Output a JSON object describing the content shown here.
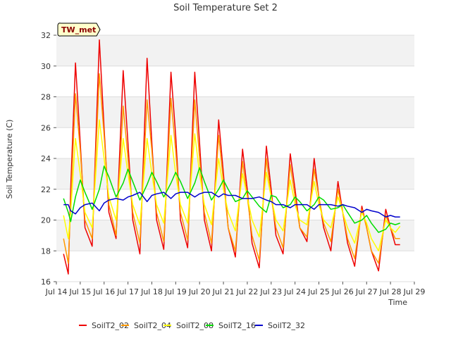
{
  "chart_data": {
    "type": "line",
    "title": "Soil Temperature Set 2",
    "xlabel": "Time",
    "ylabel": "Soil Temperature (C)",
    "badge": "TW_met",
    "x_ticks": [
      "Jul 14",
      "Jul 15",
      "Jul 16",
      "Jul 17",
      "Jul 18",
      "Jul 19",
      "Jul 20",
      "Jul 21",
      "Jul 22",
      "Jul 23",
      "Jul 24",
      "Jul 25",
      "Jul 26",
      "Jul 27",
      "Jul 28",
      "Jul 29"
    ],
    "y_ticks": [
      "16",
      "18",
      "20",
      "22",
      "24",
      "26",
      "28",
      "30",
      "32"
    ],
    "xlim": [
      14,
      29
    ],
    "ylim": [
      16,
      32
    ],
    "grid": "alternating horizontal bands",
    "legend_position": "bottom",
    "x": [
      14.3,
      14.5,
      14.6,
      14.8,
      15.0,
      15.2,
      15.5,
      15.8,
      16.0,
      16.2,
      16.5,
      16.8,
      17.0,
      17.2,
      17.5,
      17.8,
      18.0,
      18.2,
      18.5,
      18.8,
      19.0,
      19.2,
      19.5,
      19.8,
      20.0,
      20.2,
      20.5,
      20.8,
      21.0,
      21.2,
      21.5,
      21.8,
      22.0,
      22.2,
      22.5,
      22.8,
      23.0,
      23.2,
      23.5,
      23.8,
      24.0,
      24.2,
      24.5,
      24.8,
      25.0,
      25.2,
      25.5,
      25.8,
      26.0,
      26.2,
      26.5,
      26.8,
      27.0,
      27.2,
      27.5,
      27.8,
      28.0,
      28.2,
      28.4
    ],
    "series": [
      {
        "name": "SoilT2_02",
        "color": "#ee0000",
        "values": [
          17.8,
          16.5,
          22.0,
          30.2,
          25.0,
          19.5,
          18.3,
          31.7,
          26.0,
          20.5,
          18.8,
          29.7,
          25.0,
          20.0,
          17.8,
          30.5,
          25.0,
          20.0,
          18.1,
          29.6,
          25.5,
          20.0,
          18.2,
          29.6,
          25.0,
          20.0,
          18.0,
          26.5,
          23.0,
          19.5,
          17.6,
          24.6,
          22.0,
          18.5,
          16.9,
          24.8,
          22.0,
          19.0,
          17.8,
          24.3,
          22.0,
          19.5,
          18.6,
          24.0,
          21.5,
          19.5,
          18.0,
          22.5,
          20.5,
          18.5,
          17.0,
          20.9,
          19.5,
          18.0,
          16.7,
          20.7,
          19.5,
          18.4,
          18.4
        ]
      },
      {
        "name": "SoilT2_04",
        "color": "#ff9900",
        "values": [
          18.8,
          17.2,
          21.0,
          28.2,
          24.5,
          20.0,
          18.8,
          29.5,
          25.5,
          21.0,
          19.0,
          27.4,
          24.0,
          20.5,
          18.5,
          27.8,
          24.5,
          20.5,
          18.6,
          27.9,
          24.5,
          20.5,
          18.7,
          27.8,
          24.0,
          20.5,
          18.5,
          25.5,
          22.5,
          19.5,
          18.0,
          23.8,
          21.5,
          19.0,
          17.4,
          24.0,
          21.5,
          19.5,
          18.2,
          23.6,
          21.5,
          19.5,
          18.9,
          23.3,
          21.5,
          19.8,
          18.6,
          22.0,
          20.5,
          18.8,
          17.5,
          20.7,
          19.5,
          18.0,
          17.2,
          20.3,
          19.5,
          18.8,
          18.8
        ]
      },
      {
        "name": "SoilT2_08",
        "color": "#ffff00",
        "values": [
          20.3,
          18.8,
          20.5,
          25.3,
          23.0,
          20.5,
          19.5,
          26.5,
          24.0,
          21.5,
          20.0,
          25.3,
          23.0,
          21.0,
          19.7,
          25.3,
          23.0,
          21.0,
          19.8,
          25.5,
          23.0,
          21.0,
          19.8,
          25.6,
          23.0,
          21.0,
          19.7,
          24.0,
          22.0,
          20.5,
          19.3,
          23.0,
          21.5,
          20.0,
          18.9,
          23.1,
          21.5,
          20.0,
          19.3,
          22.6,
          21.0,
          20.0,
          19.7,
          22.5,
          21.0,
          20.0,
          19.5,
          21.5,
          20.5,
          19.5,
          18.5,
          20.5,
          19.8,
          18.8,
          18.0,
          20.0,
          19.5,
          19.2,
          19.6
        ]
      },
      {
        "name": "SoilT2_16",
        "color": "#00dd00",
        "values": [
          21.4,
          20.5,
          19.9,
          21.5,
          22.6,
          21.8,
          20.7,
          22.0,
          23.5,
          22.8,
          21.5,
          22.4,
          23.3,
          22.5,
          21.3,
          22.3,
          23.1,
          22.5,
          21.5,
          22.4,
          23.1,
          22.5,
          21.4,
          22.4,
          23.4,
          22.5,
          21.3,
          22.0,
          22.6,
          22.0,
          21.2,
          21.4,
          21.9,
          21.5,
          20.9,
          20.5,
          21.6,
          21.5,
          20.8,
          21.0,
          21.5,
          21.2,
          20.6,
          21.0,
          21.5,
          21.3,
          20.7,
          20.8,
          21.0,
          20.5,
          19.8,
          20.0,
          20.3,
          19.8,
          19.2,
          19.4,
          19.8,
          19.7,
          19.8
        ]
      },
      {
        "name": "SoilT2_32",
        "color": "#0000cc",
        "values": [
          21.0,
          21.0,
          20.6,
          20.4,
          20.8,
          21.0,
          21.1,
          20.6,
          21.1,
          21.3,
          21.4,
          21.3,
          21.5,
          21.6,
          21.8,
          21.2,
          21.6,
          21.7,
          21.8,
          21.4,
          21.7,
          21.8,
          21.8,
          21.5,
          21.7,
          21.8,
          21.8,
          21.5,
          21.7,
          21.6,
          21.6,
          21.4,
          21.4,
          21.4,
          21.5,
          21.3,
          21.2,
          21.0,
          21.0,
          20.8,
          21.0,
          21.0,
          21.0,
          20.7,
          21.0,
          21.0,
          21.0,
          20.9,
          21.0,
          20.9,
          20.8,
          20.5,
          20.7,
          20.6,
          20.5,
          20.2,
          20.3,
          20.2,
          20.2
        ]
      }
    ]
  }
}
